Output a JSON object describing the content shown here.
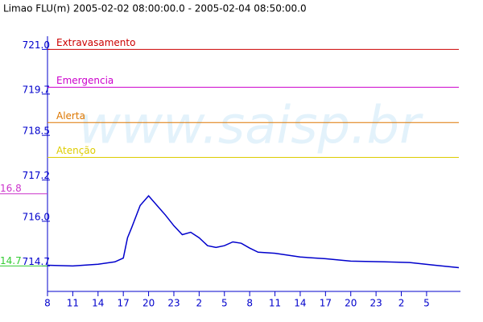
{
  "chart_data": {
    "type": "line",
    "title": "Limao FLU(m) 2005-02-02 08:00:00.0 - 2005-02-04 08:50:00.0",
    "watermark": "www.saisp.br",
    "x": [
      0,
      3,
      6,
      8,
      9,
      9.5,
      10,
      11,
      12,
      13,
      14,
      15,
      16,
      17,
      18,
      19,
      20,
      21,
      22,
      23,
      24,
      25,
      27,
      30,
      33,
      36,
      40,
      43,
      46,
      48.83
    ],
    "series": [
      {
        "name": "Limao FLU(m)",
        "color": "#0000cc",
        "values": [
          714.72,
          714.7,
          714.75,
          714.82,
          714.93,
          715.52,
          715.82,
          716.46,
          716.74,
          716.46,
          716.18,
          715.87,
          715.61,
          715.68,
          715.52,
          715.29,
          715.24,
          715.29,
          715.4,
          715.36,
          715.22,
          715.1,
          715.07,
          714.96,
          714.91,
          714.84,
          714.82,
          714.8,
          714.72,
          714.65
        ]
      }
    ],
    "xlim": [
      0,
      48.83
    ],
    "xticks": [
      {
        "value": 0,
        "label": "8"
      },
      {
        "value": 3,
        "label": "11"
      },
      {
        "value": 6,
        "label": "14"
      },
      {
        "value": 9,
        "label": "17"
      },
      {
        "value": 12,
        "label": "20"
      },
      {
        "value": 15,
        "label": "23"
      },
      {
        "value": 18,
        "label": "2"
      },
      {
        "value": 21,
        "label": "5"
      },
      {
        "value": 24,
        "label": "8"
      },
      {
        "value": 27,
        "label": "11"
      },
      {
        "value": 30,
        "label": "14"
      },
      {
        "value": 33,
        "label": "17"
      },
      {
        "value": 36,
        "label": "20"
      },
      {
        "value": 39,
        "label": "23"
      },
      {
        "value": 42,
        "label": "2"
      },
      {
        "value": 45,
        "label": "5"
      }
    ],
    "ylim": [
      714.1,
      721.5
    ],
    "yticks": [
      714.7,
      {
        "value": 716,
        "label": "716.0"
      },
      717.2,
      718.5,
      719.7,
      {
        "value": 721,
        "label": "721.0"
      }
    ],
    "thresholds": [
      {
        "name": "Extravasamento",
        "value": 721,
        "color": "#cc0000"
      },
      {
        "name": "Emergencia",
        "value": 719.9,
        "color": "#cc00cc"
      },
      {
        "name": "Alerta",
        "value": 718.87,
        "color": "#dd7700"
      },
      {
        "name": "Atenção",
        "value": 717.86,
        "color": "#ddcc00"
      }
    ],
    "markers": [
      {
        "value": 716.8,
        "label": "16.8",
        "color": "#cc33cc"
      },
      {
        "value": 714.7,
        "label": "14.7",
        "color": "#33cc33"
      }
    ]
  }
}
